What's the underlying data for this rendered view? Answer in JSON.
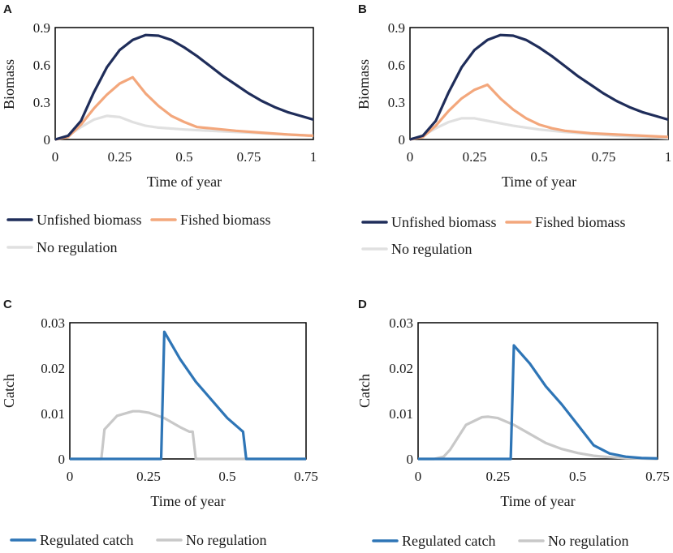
{
  "chart_data": [
    {
      "id": "A",
      "panel_label": "A",
      "type": "line",
      "xlabel": "Time of year",
      "ylabel": "Biomass",
      "xlim": [
        0,
        1
      ],
      "ylim": [
        0,
        0.9
      ],
      "xticks": [
        0,
        0.25,
        0.5,
        0.75,
        1
      ],
      "xtick_labels": [
        "0",
        "0.25",
        "0.5",
        "0.75",
        "1"
      ],
      "yticks": [
        0,
        0.3,
        0.6,
        0.9
      ],
      "ytick_labels": [
        "0",
        "0.3",
        "0.6",
        "0.9"
      ],
      "series": [
        {
          "name": "Unfished biomass",
          "color": "#1f2d5a",
          "x": [
            0,
            0.05,
            0.1,
            0.15,
            0.2,
            0.25,
            0.3,
            0.35,
            0.4,
            0.45,
            0.5,
            0.55,
            0.6,
            0.65,
            0.7,
            0.75,
            0.8,
            0.85,
            0.9,
            0.95,
            1.0
          ],
          "y": [
            0,
            0.03,
            0.15,
            0.38,
            0.58,
            0.72,
            0.8,
            0.84,
            0.835,
            0.8,
            0.74,
            0.67,
            0.59,
            0.51,
            0.44,
            0.37,
            0.31,
            0.26,
            0.22,
            0.19,
            0.16
          ]
        },
        {
          "name": "Fished biomass",
          "color": "#f3a77c",
          "x": [
            0,
            0.05,
            0.1,
            0.15,
            0.2,
            0.25,
            0.3,
            0.35,
            0.4,
            0.45,
            0.5,
            0.55,
            0.6,
            0.7,
            0.8,
            0.9,
            1.0
          ],
          "y": [
            0,
            0.02,
            0.12,
            0.25,
            0.36,
            0.45,
            0.5,
            0.37,
            0.27,
            0.19,
            0.14,
            0.1,
            0.09,
            0.07,
            0.055,
            0.04,
            0.03
          ]
        },
        {
          "name": "No regulation",
          "color": "#e0e0e0",
          "x": [
            0,
            0.05,
            0.1,
            0.15,
            0.2,
            0.25,
            0.3,
            0.35,
            0.4,
            0.5,
            0.6,
            0.7,
            0.8,
            0.9,
            1.0
          ],
          "y": [
            0,
            0.03,
            0.1,
            0.16,
            0.19,
            0.18,
            0.14,
            0.11,
            0.095,
            0.08,
            0.07,
            0.06,
            0.05,
            0.04,
            0.03
          ]
        }
      ]
    },
    {
      "id": "B",
      "panel_label": "B",
      "type": "line",
      "xlabel": "Time of year",
      "ylabel": "Biomass",
      "xlim": [
        0,
        1
      ],
      "ylim": [
        0,
        0.9
      ],
      "xticks": [
        0,
        0.25,
        0.5,
        0.75,
        1
      ],
      "xtick_labels": [
        "0",
        "0.25",
        "0.5",
        "0.75",
        "1"
      ],
      "yticks": [
        0,
        0.3,
        0.6,
        0.9
      ],
      "ytick_labels": [
        "0",
        "0.3",
        "0.6",
        "0.9"
      ],
      "series": [
        {
          "name": "Unfished biomass",
          "color": "#1f2d5a",
          "x": [
            0,
            0.05,
            0.1,
            0.15,
            0.2,
            0.25,
            0.3,
            0.35,
            0.4,
            0.45,
            0.5,
            0.55,
            0.6,
            0.65,
            0.7,
            0.75,
            0.8,
            0.85,
            0.9,
            0.95,
            1.0
          ],
          "y": [
            0,
            0.03,
            0.15,
            0.38,
            0.58,
            0.72,
            0.8,
            0.84,
            0.835,
            0.8,
            0.74,
            0.67,
            0.59,
            0.51,
            0.44,
            0.37,
            0.31,
            0.26,
            0.22,
            0.19,
            0.16
          ]
        },
        {
          "name": "Fished biomass",
          "color": "#f3a77c",
          "x": [
            0,
            0.05,
            0.1,
            0.15,
            0.2,
            0.25,
            0.3,
            0.35,
            0.4,
            0.45,
            0.5,
            0.55,
            0.6,
            0.7,
            0.8,
            0.9,
            1.0
          ],
          "y": [
            0,
            0.02,
            0.11,
            0.23,
            0.33,
            0.4,
            0.44,
            0.33,
            0.24,
            0.17,
            0.12,
            0.09,
            0.07,
            0.05,
            0.04,
            0.03,
            0.02
          ]
        },
        {
          "name": "No regulation",
          "color": "#e0e0e0",
          "x": [
            0,
            0.05,
            0.1,
            0.15,
            0.2,
            0.25,
            0.3,
            0.35,
            0.4,
            0.5,
            0.6,
            0.7,
            0.8,
            0.9,
            1.0
          ],
          "y": [
            0,
            0.03,
            0.09,
            0.14,
            0.17,
            0.17,
            0.15,
            0.13,
            0.11,
            0.08,
            0.06,
            0.045,
            0.03,
            0.02,
            0.01
          ]
        }
      ]
    },
    {
      "id": "C",
      "panel_label": "C",
      "type": "line",
      "xlabel": "Time of year",
      "ylabel": "Catch",
      "xlim": [
        0,
        0.75
      ],
      "ylim": [
        0,
        0.03
      ],
      "xticks": [
        0,
        0.25,
        0.5,
        0.75
      ],
      "xtick_labels": [
        "0",
        "0.25",
        "0.5",
        "0.75"
      ],
      "yticks": [
        0,
        0.01,
        0.02,
        0.03
      ],
      "ytick_labels": [
        "0",
        "0.01",
        "0.02",
        "0.03"
      ],
      "series": [
        {
          "name": "Regulated catch",
          "color": "#2e75b6",
          "x": [
            0,
            0.29,
            0.3,
            0.35,
            0.4,
            0.45,
            0.5,
            0.55,
            0.56,
            0.75
          ],
          "y": [
            0,
            0,
            0.028,
            0.022,
            0.017,
            0.013,
            0.009,
            0.006,
            0,
            0
          ]
        },
        {
          "name": "No regulation",
          "color": "#c8c8c8",
          "x": [
            0,
            0.1,
            0.11,
            0.15,
            0.2,
            0.22,
            0.25,
            0.3,
            0.35,
            0.38,
            0.39,
            0.4,
            0.75
          ],
          "y": [
            0,
            0,
            0.0065,
            0.0095,
            0.0105,
            0.0105,
            0.0102,
            0.009,
            0.007,
            0.006,
            0.006,
            0,
            0
          ]
        }
      ]
    },
    {
      "id": "D",
      "panel_label": "D",
      "type": "line",
      "xlabel": "Time of year",
      "ylabel": "Catch",
      "xlim": [
        0,
        0.75
      ],
      "ylim": [
        0,
        0.03
      ],
      "xticks": [
        0,
        0.25,
        0.5,
        0.75
      ],
      "xtick_labels": [
        "0",
        "0.25",
        "0.5",
        "0.75"
      ],
      "yticks": [
        0,
        0.01,
        0.02,
        0.03
      ],
      "ytick_labels": [
        "0",
        "0.01",
        "0.02",
        "0.03"
      ],
      "series": [
        {
          "name": "Regulated catch",
          "color": "#2e75b6",
          "x": [
            0,
            0.29,
            0.3,
            0.35,
            0.4,
            0.45,
            0.5,
            0.55,
            0.6,
            0.65,
            0.7,
            0.75
          ],
          "y": [
            0,
            0,
            0.025,
            0.021,
            0.016,
            0.012,
            0.0075,
            0.003,
            0.0012,
            0.0005,
            0.0002,
            0.0001
          ]
        },
        {
          "name": "No regulation",
          "color": "#c8c8c8",
          "x": [
            0,
            0.05,
            0.08,
            0.1,
            0.15,
            0.2,
            0.22,
            0.25,
            0.3,
            0.35,
            0.4,
            0.45,
            0.5,
            0.55,
            0.6,
            0.65,
            0.75
          ],
          "y": [
            0,
            0,
            0.0005,
            0.002,
            0.0075,
            0.0092,
            0.0093,
            0.009,
            0.0075,
            0.0055,
            0.0035,
            0.0022,
            0.0013,
            0.0007,
            0.0004,
            0.0002,
            0
          ]
        }
      ]
    }
  ]
}
